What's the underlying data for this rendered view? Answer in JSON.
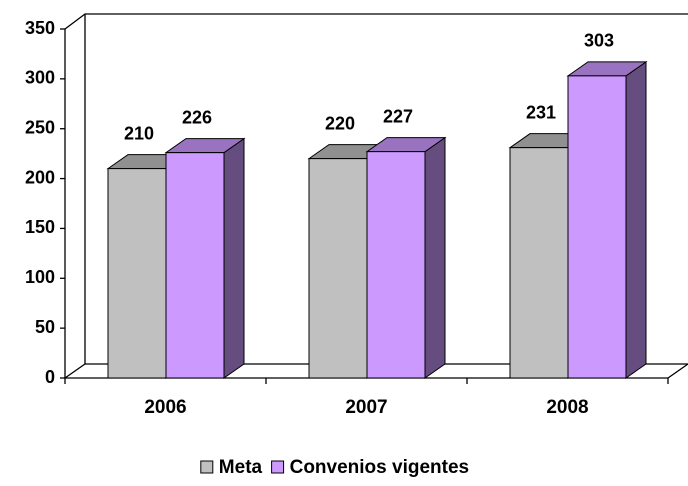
{
  "chart_data": {
    "type": "bar3d",
    "categories": [
      "2006",
      "2007",
      "2008"
    ],
    "series": [
      {
        "name": "Meta",
        "color": "#c0c0c0",
        "values": [
          210,
          220,
          231
        ]
      },
      {
        "name": "Convenios vigentes",
        "color": "#cc99ff",
        "values": [
          226,
          227,
          303
        ]
      }
    ],
    "ylim": [
      0,
      350
    ],
    "yticks": [
      0,
      50,
      100,
      150,
      200,
      250,
      300,
      350
    ],
    "legend": "bottom"
  }
}
